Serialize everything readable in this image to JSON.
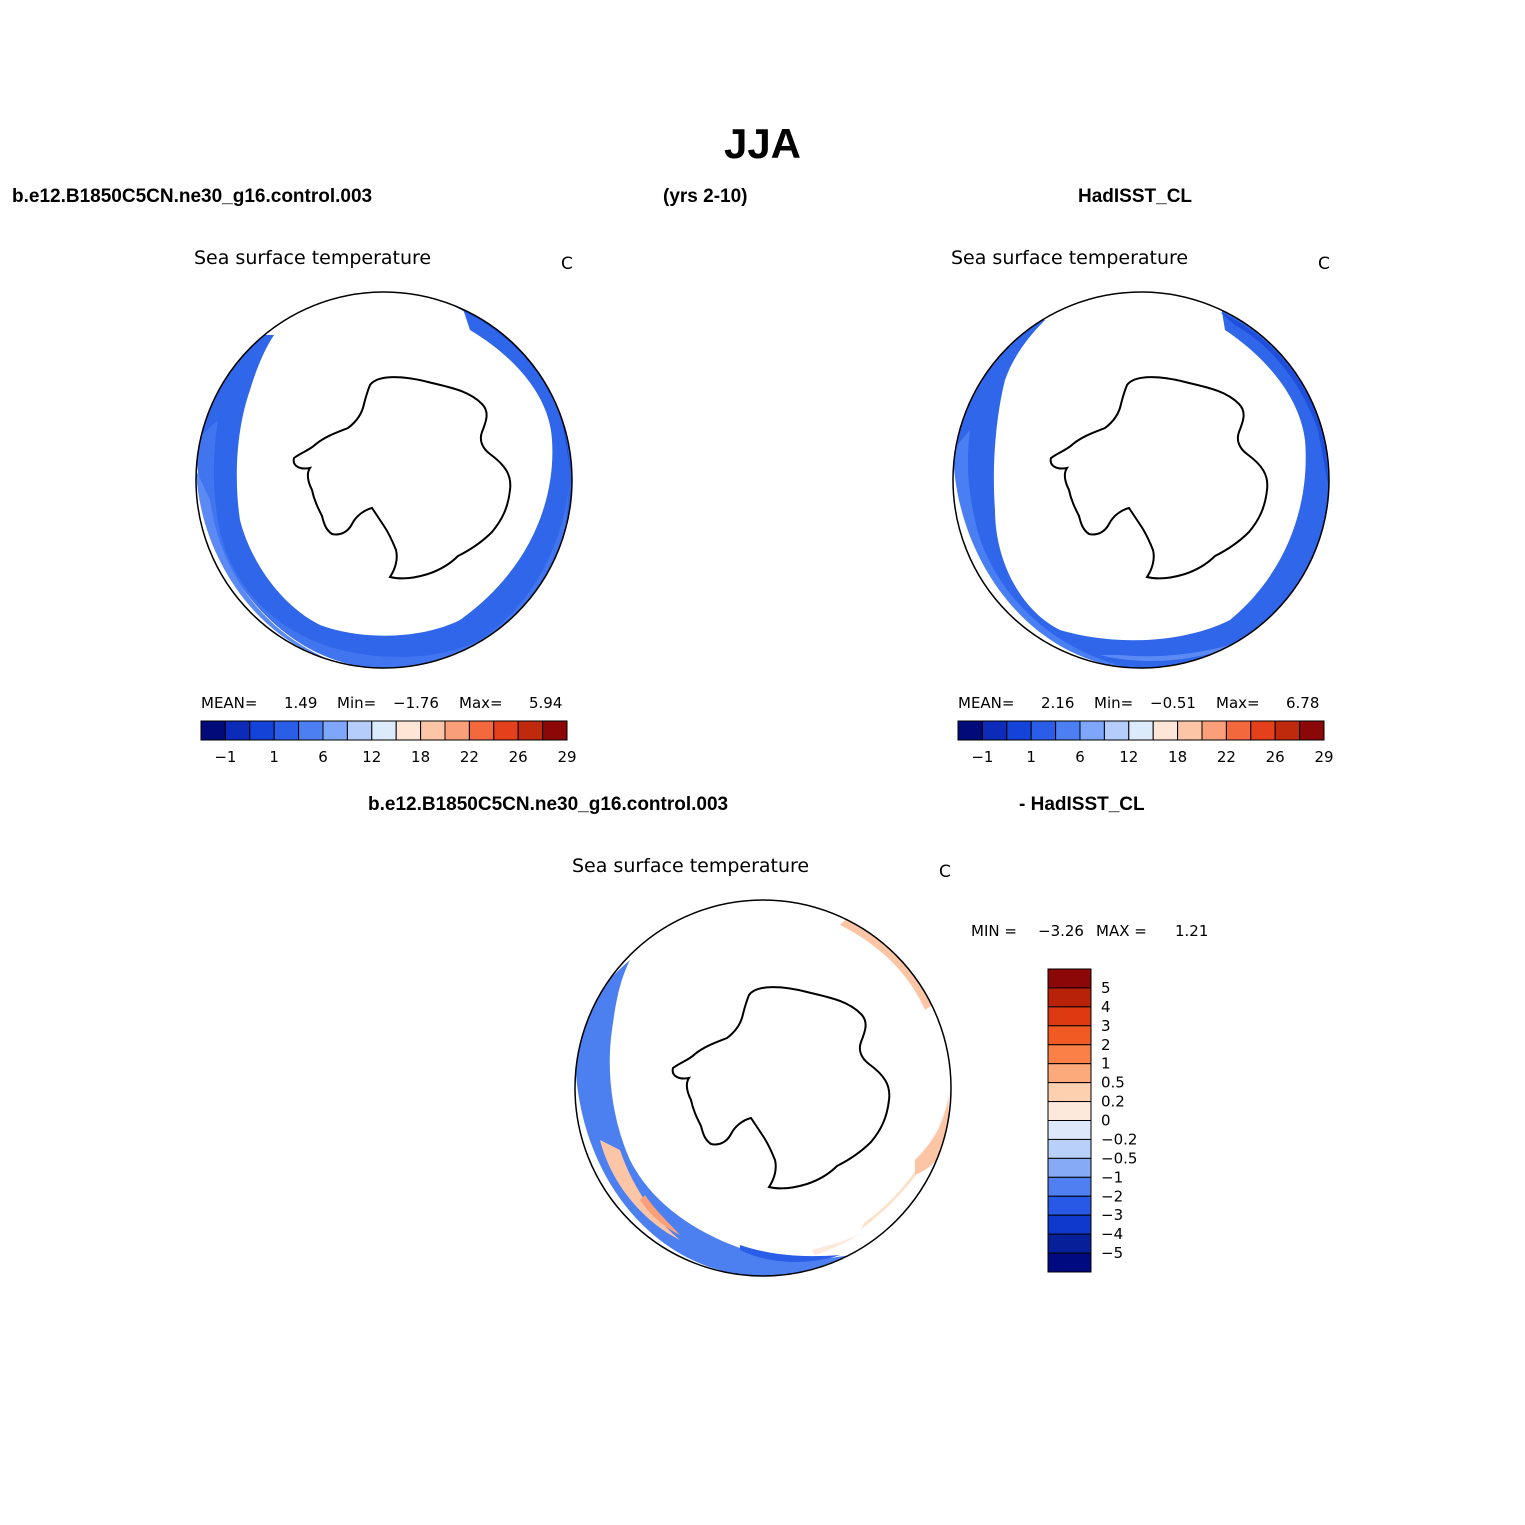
{
  "figure": {
    "title": "JJA",
    "case_label": "b.e12.B1850C5CN.ne30_g16.control.003",
    "years_label": "(yrs 2-10)",
    "obs_label": "HadISST_CL",
    "diff_case_label": "b.e12.B1850C5CN.ne30_g16.control.003",
    "diff_obs_label": "- HadISST_CL"
  },
  "panels": [
    {
      "id": "model",
      "title": "Sea surface temperature",
      "units": "C",
      "stats": {
        "mean_label": "MEAN=",
        "mean": "1.49",
        "min_label": "Min=",
        "min": "−1.76",
        "max_label": "Max=",
        "max": "5.94"
      },
      "colorbar_colors": [
        "#000a78",
        "#0c2bb8",
        "#1443da",
        "#2a5ee8",
        "#4c7ff2",
        "#7ea7fb",
        "#b4cdfb",
        "#dcebfc",
        "#fde6d6",
        "#fcc5a6",
        "#f9a07a",
        "#f4683e",
        "#e5401c",
        "#c02a0c",
        "#8c0707"
      ],
      "colorbar_labels": [
        "−1",
        "1",
        "6",
        "12",
        "18",
        "22",
        "26",
        "29"
      ]
    },
    {
      "id": "obs",
      "title": "Sea surface temperature",
      "units": "C",
      "stats": {
        "mean_label": "MEAN=",
        "mean": "2.16",
        "min_label": "Min=",
        "min": "−0.51",
        "max_label": "Max=",
        "max": "6.78"
      },
      "colorbar_colors": [
        "#000a78",
        "#0c2bb8",
        "#1443da",
        "#2a5ee8",
        "#4c7ff2",
        "#7ea7fb",
        "#b4cdfb",
        "#dcebfc",
        "#fde6d6",
        "#fcc5a6",
        "#f9a07a",
        "#f4683e",
        "#e5401c",
        "#c02a0c",
        "#8c0707"
      ],
      "colorbar_labels": [
        "−1",
        "1",
        "6",
        "12",
        "18",
        "22",
        "26",
        "29"
      ]
    },
    {
      "id": "diff",
      "title": "Sea surface temperature",
      "units": "C",
      "stats": {
        "min_label": "MIN =",
        "min": "−3.26",
        "max_label": "MAX =",
        "max": "1.21"
      },
      "colorbar_colors": [
        "#8c0707",
        "#b82208",
        "#dd3a12",
        "#f25a24",
        "#fa8048",
        "#fca97c",
        "#fdd0b0",
        "#fde9dc",
        "#dde9fb",
        "#b8d0fa",
        "#87aaf6",
        "#4f7ff0",
        "#2858e6",
        "#0f38cc",
        "#06209a",
        "#000a80"
      ],
      "colorbar_labels": [
        "5",
        "4",
        "3",
        "2",
        "1",
        "0.5",
        "0.2",
        "0",
        "−0.2",
        "−0.5",
        "−1",
        "−2",
        "−3",
        "−4",
        "−5"
      ]
    }
  ]
}
